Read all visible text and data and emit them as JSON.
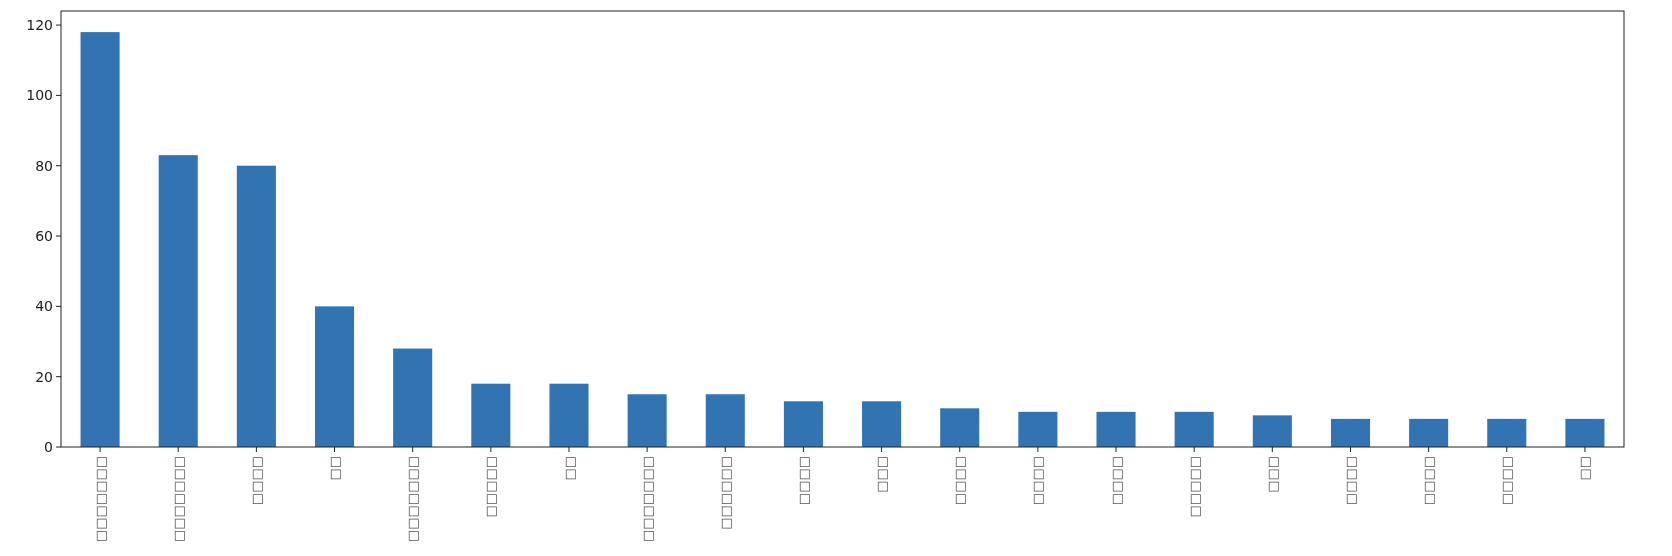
{
  "chart_data": {
    "type": "bar",
    "categories": [
      "□□□□□□□",
      "□□□□□□□",
      "□□□□",
      "□□",
      "□□□□□□□",
      "□□□□□",
      "□□",
      "□□□□□□□",
      "□□□□□□",
      "□□□□",
      "□□□",
      "□□□□",
      "□□□□",
      "□□□□",
      "□□□□□",
      "□□□",
      "□□□□",
      "□□□□",
      "□□□□",
      "□□"
    ],
    "values": [
      118,
      83,
      80,
      40,
      28,
      18,
      18,
      15,
      15,
      13,
      13,
      11,
      10,
      10,
      10,
      9,
      8,
      8,
      8,
      8
    ],
    "color": "#3274b2",
    "ylim": [
      0,
      124
    ],
    "yticks": [
      0,
      20,
      40,
      60,
      80,
      100,
      120
    ],
    "grid": false
  }
}
